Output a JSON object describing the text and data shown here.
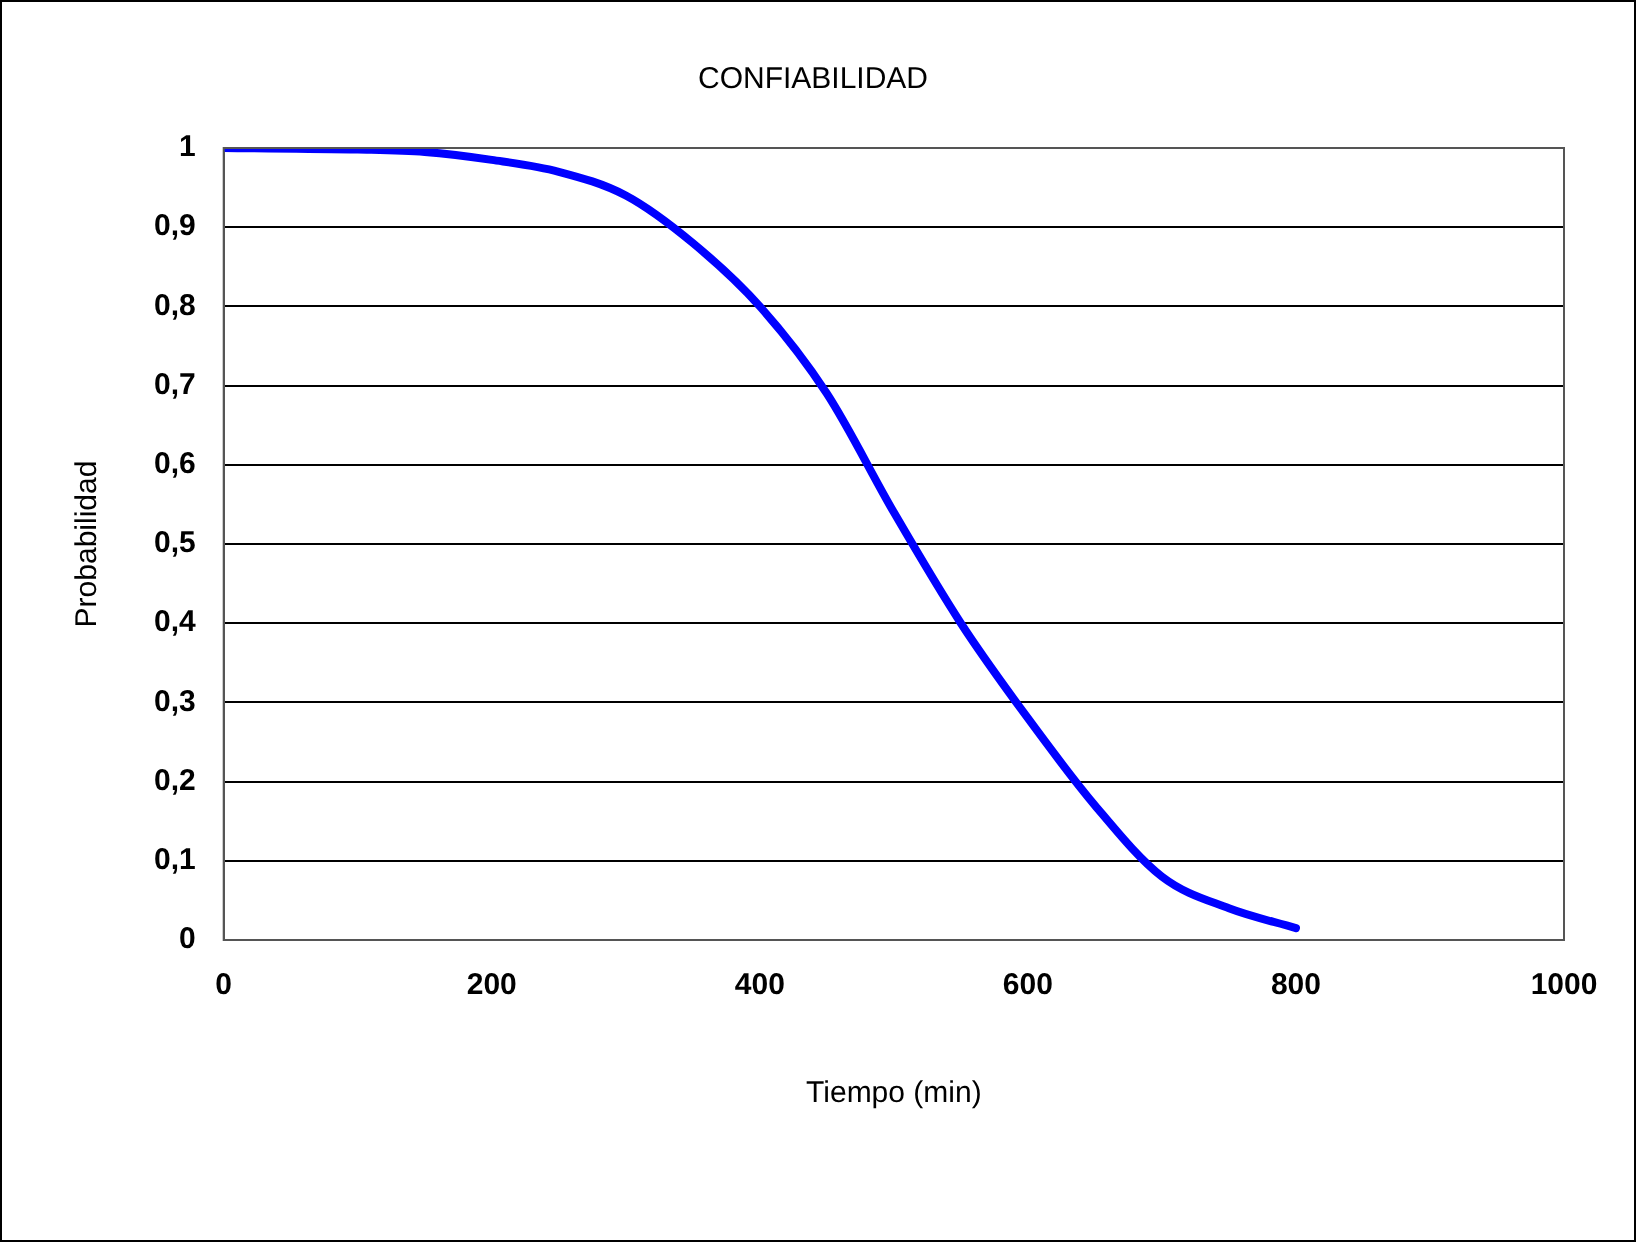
{
  "chart_data": {
    "type": "line",
    "title": "CONFIABILIDAD",
    "xlabel": "Tiempo (min)",
    "ylabel": "Probabilidad",
    "x": [
      0,
      100,
      150,
      200,
      250,
      300,
      350,
      400,
      450,
      500,
      550,
      600,
      650,
      700,
      750,
      800
    ],
    "series": [
      {
        "color": "#0000ff",
        "values": [
          1,
          0.998,
          0.995,
          0.985,
          0.97,
          0.94,
          0.88,
          0.8,
          0.69,
          0.54,
          0.4,
          0.28,
          0.17,
          0.08,
          0.04,
          0.015
        ]
      }
    ],
    "xlim": [
      0,
      1000
    ],
    "xticks": [
      0,
      200,
      400,
      600,
      800,
      1000
    ],
    "ylim": [
      0,
      1
    ],
    "yticks": [
      0,
      {
        "value": 0.1,
        "label": "0,1"
      },
      {
        "value": 0.2,
        "label": "0,2"
      },
      {
        "value": 0.3,
        "label": "0,3"
      },
      {
        "value": 0.4,
        "label": "0,4"
      },
      {
        "value": 0.5,
        "label": "0,5"
      },
      {
        "value": 0.6,
        "label": "0,6"
      },
      {
        "value": 0.7,
        "label": "0,7"
      },
      {
        "value": 0.8,
        "label": "0,8"
      },
      {
        "value": 0.9,
        "label": "0,9"
      },
      1
    ],
    "grid": "y",
    "legend": false,
    "marker": "none",
    "line_style": "solid"
  }
}
